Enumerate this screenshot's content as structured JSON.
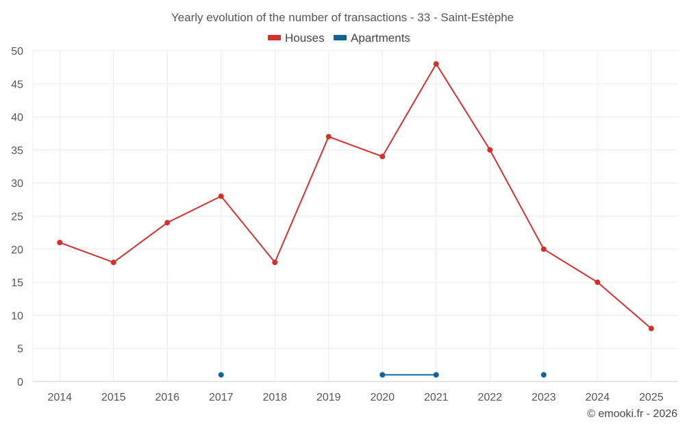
{
  "chart_data": {
    "type": "line",
    "title": "Yearly evolution of the number of transactions - 33 - Saint-Estèphe",
    "categories": [
      "2014",
      "2015",
      "2016",
      "2017",
      "2018",
      "2019",
      "2020",
      "2021",
      "2022",
      "2023",
      "2024",
      "2025"
    ],
    "series": [
      {
        "name": "Houses",
        "color": "#d0312d",
        "values": [
          21,
          18,
          24,
          28,
          18,
          37,
          34,
          48,
          35,
          20,
          15,
          8
        ]
      },
      {
        "name": "Apartments",
        "color": "#0e6499",
        "values": [
          null,
          null,
          null,
          1,
          null,
          null,
          1,
          1,
          null,
          1,
          null,
          null
        ]
      }
    ],
    "ylim": [
      0,
      50
    ],
    "yticks": [
      0,
      5,
      10,
      15,
      20,
      25,
      30,
      35,
      40,
      45,
      50
    ],
    "xlabel": "",
    "ylabel": "",
    "grid": true,
    "legend_position": "top-center"
  },
  "credit": "© emooki.fr - 2026"
}
